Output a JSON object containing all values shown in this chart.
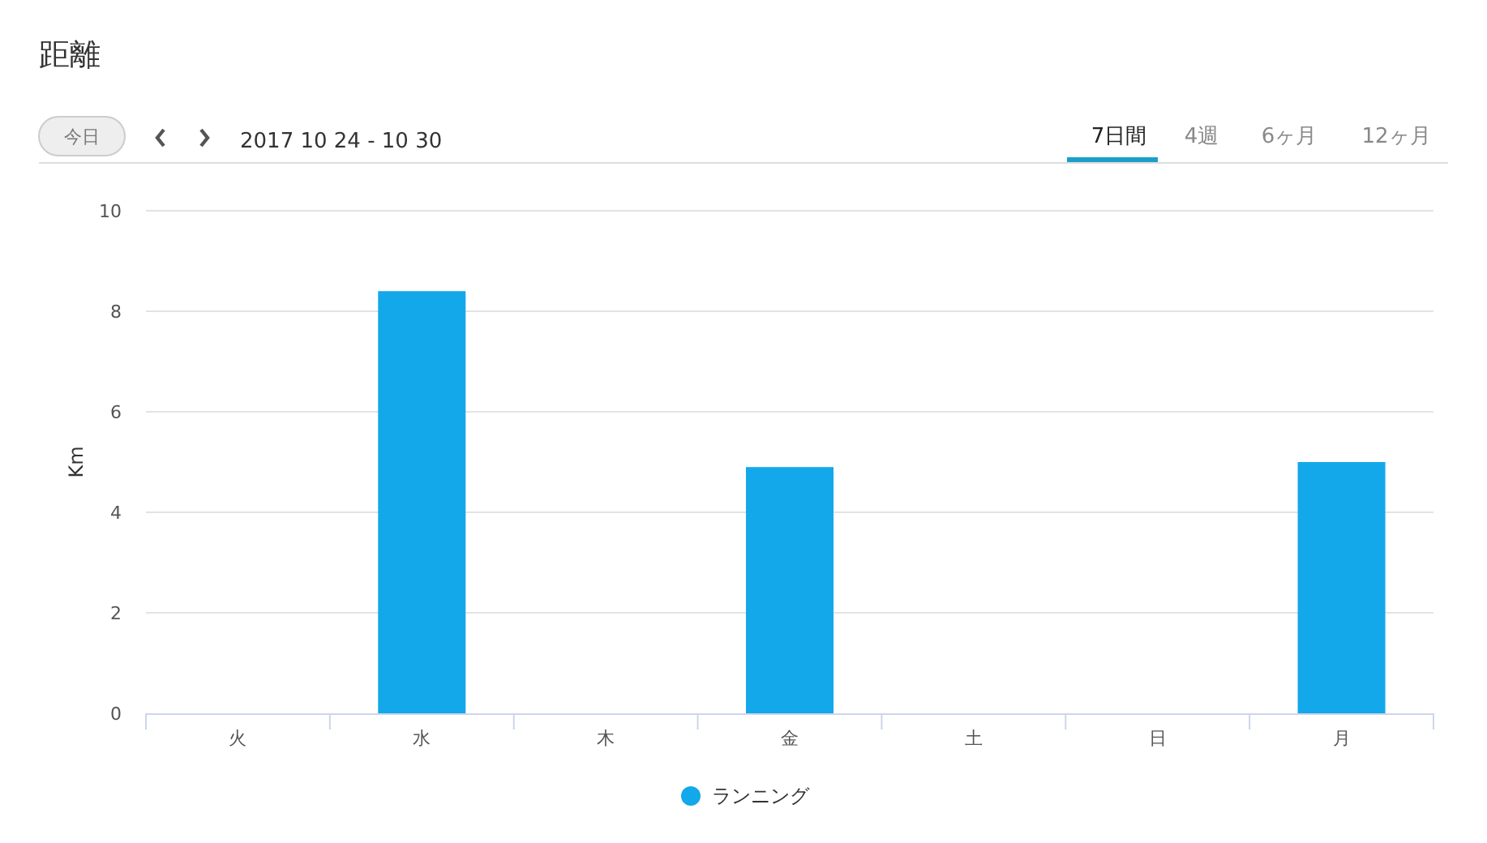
{
  "chart_data": {
    "type": "bar",
    "title": "距離",
    "ylabel": "Km",
    "annotations": [
      "今日",
      "2017 10 24 - 10 30",
      "7日間",
      "4週",
      "6ヶ月",
      "12ヶ月"
    ],
    "categories": [
      "火",
      "水",
      "木",
      "金",
      "土",
      "日",
      "月"
    ],
    "series": [
      {
        "name": "ランニング",
        "color": "#13a8ea",
        "values": [
          0,
          8.4,
          0,
          4.9,
          0,
          0,
          5.0
        ]
      }
    ],
    "ylim": [
      0,
      10
    ],
    "yticks": [
      0,
      2,
      4,
      6,
      8,
      10
    ],
    "grid": "y",
    "legend": "bottom"
  }
}
